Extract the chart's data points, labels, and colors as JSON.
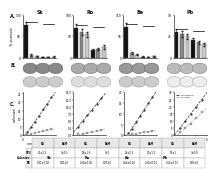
{
  "cell_lines": [
    "Sk",
    "Ro",
    "Be",
    "Pb"
  ],
  "bar_groups": {
    "Sk": {
      "bars": [
        100,
        8,
        4,
        2,
        1,
        3
      ],
      "colors": [
        "#111111",
        "#aaaaaa",
        "#dddddd",
        "#111111",
        "#aaaaaa",
        "#dddddd"
      ],
      "errors": [
        10,
        2,
        1,
        0.5,
        0.3,
        0.8
      ],
      "ylim": [
        0,
        130
      ]
    },
    "Ro": {
      "bars": [
        70,
        60,
        55,
        18,
        20,
        25
      ],
      "colors": [
        "#111111",
        "#888888",
        "#cccccc",
        "#111111",
        "#888888",
        "#cccccc"
      ],
      "errors": [
        8,
        7,
        6,
        3,
        3,
        4
      ],
      "ylim": [
        0,
        100
      ]
    },
    "Be": {
      "bars": [
        80,
        12,
        8,
        3,
        2,
        4
      ],
      "colors": [
        "#111111",
        "#aaaaaa",
        "#dddddd",
        "#111111",
        "#aaaaaa",
        "#dddddd"
      ],
      "errors": [
        9,
        3,
        2,
        0.8,
        0.5,
        1
      ],
      "ylim": [
        0,
        110
      ]
    },
    "Pb": {
      "bars": [
        55,
        50,
        45,
        38,
        32,
        28
      ],
      "colors": [
        "#111111",
        "#888888",
        "#cccccc",
        "#111111",
        "#888888",
        "#cccccc"
      ],
      "errors": [
        6,
        6,
        5,
        4,
        4,
        3
      ],
      "ylim": [
        0,
        90
      ]
    }
  },
  "colony_rows": [
    {
      "top_color": "#888888",
      "top_ec": "#666666",
      "bot_color": "#cccccc",
      "bot_ec": "#999999"
    },
    {
      "top_color": "#aaaaaa",
      "top_ec": "#777777",
      "bot_color": "#dddddd",
      "bot_ec": "#aaaaaa"
    },
    {
      "top_color": "#999999",
      "top_ec": "#666666",
      "bot_color": "#cccccc",
      "bot_ec": "#999999"
    },
    {
      "top_color": "#bbbbbb",
      "top_ec": "#888888",
      "bot_color": "#eeeeee",
      "bot_ec": "#aaaaaa"
    }
  ],
  "scatter_data": {
    "Sk": {
      "x1": [
        1,
        2,
        3,
        4,
        5,
        6,
        7
      ],
      "y1": [
        2,
        5,
        8,
        12,
        16,
        19,
        23
      ],
      "x2": [
        1,
        2,
        3,
        4,
        5,
        6,
        7
      ],
      "y2": [
        0.5,
        1,
        1.5,
        2,
        2.5,
        3,
        3.5
      ],
      "xlim": [
        0,
        8
      ],
      "ylim": [
        0,
        26
      ],
      "xlabel": "seeded cells (x10³)"
    },
    "Ro": {
      "x1": [
        1,
        2,
        3,
        4,
        5,
        6
      ],
      "y1": [
        3,
        5,
        7,
        9,
        11,
        13
      ],
      "x2": [
        1,
        2,
        3,
        4,
        5,
        6
      ],
      "y2": [
        0.3,
        0.5,
        0.8,
        1.2,
        1.5,
        2
      ],
      "xlim": [
        0,
        7
      ],
      "ylim": [
        0,
        15
      ],
      "xlabel": "seeded cells (x10³)"
    },
    "Be": {
      "x1": [
        1,
        2,
        3,
        4,
        5,
        6,
        7
      ],
      "y1": [
        1,
        3,
        6,
        9,
        12,
        15,
        18
      ],
      "x2": [
        1,
        2,
        3,
        4,
        5,
        6,
        7
      ],
      "y2": [
        0.2,
        0.5,
        0.8,
        1.1,
        1.4,
        1.7,
        2
      ],
      "xlim": [
        0,
        8
      ],
      "ylim": [
        0,
        20
      ],
      "xlabel": "seeded cells (x10³)"
    },
    "Pb": {
      "x1": [
        1,
        2,
        3,
        4,
        5
      ],
      "y1": [
        5,
        10,
        15,
        20,
        25
      ],
      "x2": [
        1,
        2,
        3,
        4,
        5
      ],
      "y2": [
        2,
        5,
        8,
        12,
        16
      ],
      "xlim": [
        0,
        6
      ],
      "ylim": [
        0,
        30
      ],
      "xlabel": "seeded cells (x10³)"
    }
  },
  "table": {
    "col_groups": [
      "Sk",
      "Ro",
      "Be",
      "Pb"
    ],
    "col_subs": [
      "SG",
      "BLM",
      "SG",
      "BLM",
      "SG",
      "BLM",
      "SG",
      "BLM"
    ],
    "row_labels": [
      "Colonies",
      "CFU",
      "PE"
    ],
    "row0": [
      "",
      "Sk",
      "",
      "Ro",
      "",
      "Be",
      "",
      "Pb",
      ""
    ],
    "row1": [
      "CFU",
      "41±2.3",
      "3±0.5",
      "18±1.6",
      "7±1",
      "24±2.1",
      "10±1.2",
      "13±1",
      "3±0.8"
    ],
    "row2": [
      "PE",
      "0.41±0.02",
      "0.03±0",
      "0.18±0.02",
      "0.07±0",
      "0.24±0.02",
      "0.10±0.01",
      "0.13±0.01",
      "0.03±0"
    ]
  },
  "bg_color": "#ffffff"
}
